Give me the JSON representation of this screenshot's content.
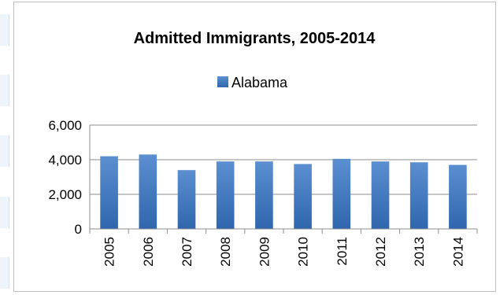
{
  "chart_data": {
    "type": "bar",
    "title": "Admitted Immigrants, 2005-2014",
    "xlabel": "",
    "ylabel": "",
    "categories": [
      "2005",
      "2006",
      "2007",
      "2008",
      "2009",
      "2010",
      "2011",
      "2012",
      "2013",
      "2014"
    ],
    "series": [
      {
        "name": "Alabama",
        "values": [
          4200,
          4300,
          3400,
          3900,
          3900,
          3750,
          4050,
          3900,
          3850,
          3700
        ],
        "color": "#4f81bd"
      }
    ],
    "ylim": [
      0,
      6000
    ],
    "yticks": [
      "0",
      "2,000",
      "4,000",
      "6,000"
    ],
    "grid": true,
    "legend": "top"
  }
}
